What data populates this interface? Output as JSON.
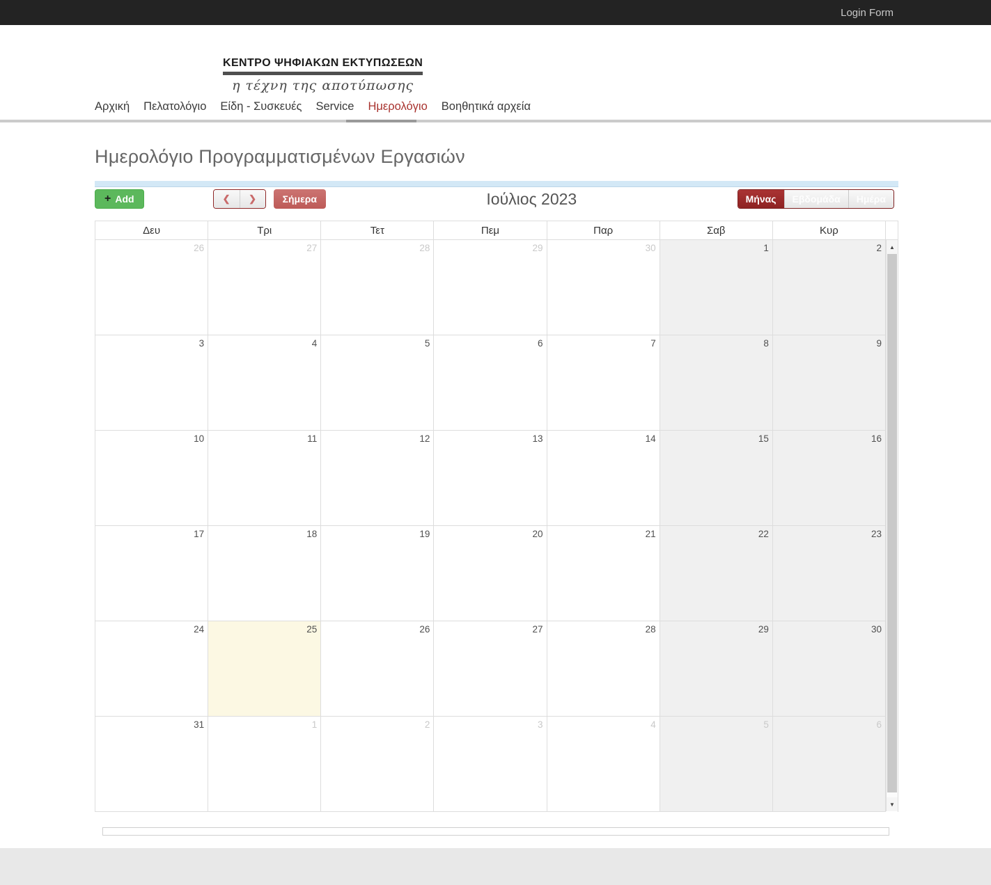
{
  "topbar": {
    "login_label": "Login Form"
  },
  "header": {
    "logo_title": "ΚΕΝΤΡΟ ΨΗΦΙΑΚΩΝ ΕΚΤΥΠΩΣΕΩΝ",
    "logo_tagline": "η τέχνη της αποτύπωσης",
    "nav": [
      {
        "label": "Αρχική",
        "active": false
      },
      {
        "label": "Πελατολόγιο",
        "active": false
      },
      {
        "label": "Είδη - Συσκευές",
        "active": false
      },
      {
        "label": "Service",
        "active": false
      },
      {
        "label": "Ημερολόγιο",
        "active": true
      },
      {
        "label": "Βοηθητικά αρχεία",
        "active": false
      }
    ]
  },
  "page": {
    "title": "Ημερολόγιο Προγραμματισμένων Εργασιών"
  },
  "calendar": {
    "toolbar": {
      "add_label": "Add",
      "today_label": "Σήμερα",
      "title": "Ιούλιος 2023",
      "views": [
        {
          "label": "Μήνας",
          "active": true
        },
        {
          "label": "Εβδομάδα",
          "active": false
        },
        {
          "label": "Ημέρα",
          "active": false
        }
      ]
    },
    "day_headers": [
      "Δευ",
      "Τρι",
      "Τετ",
      "Πεμ",
      "Παρ",
      "Σαβ",
      "Κυρ"
    ],
    "weeks": [
      [
        {
          "n": "26",
          "other": true
        },
        {
          "n": "27",
          "other": true
        },
        {
          "n": "28",
          "other": true
        },
        {
          "n": "29",
          "other": true
        },
        {
          "n": "30",
          "other": true
        },
        {
          "n": "1"
        },
        {
          "n": "2"
        }
      ],
      [
        {
          "n": "3"
        },
        {
          "n": "4"
        },
        {
          "n": "5"
        },
        {
          "n": "6"
        },
        {
          "n": "7"
        },
        {
          "n": "8"
        },
        {
          "n": "9"
        }
      ],
      [
        {
          "n": "10"
        },
        {
          "n": "11"
        },
        {
          "n": "12"
        },
        {
          "n": "13"
        },
        {
          "n": "14"
        },
        {
          "n": "15"
        },
        {
          "n": "16"
        }
      ],
      [
        {
          "n": "17"
        },
        {
          "n": "18"
        },
        {
          "n": "19"
        },
        {
          "n": "20"
        },
        {
          "n": "21"
        },
        {
          "n": "22"
        },
        {
          "n": "23"
        }
      ],
      [
        {
          "n": "24"
        },
        {
          "n": "25",
          "today": true
        },
        {
          "n": "26"
        },
        {
          "n": "27"
        },
        {
          "n": "28"
        },
        {
          "n": "29"
        },
        {
          "n": "30"
        }
      ],
      [
        {
          "n": "31"
        },
        {
          "n": "1",
          "other": true
        },
        {
          "n": "2",
          "other": true
        },
        {
          "n": "3",
          "other": true
        },
        {
          "n": "4",
          "other": true
        },
        {
          "n": "5",
          "other": true
        },
        {
          "n": "6",
          "other": true
        }
      ]
    ]
  },
  "icons": {
    "plus": "+",
    "chevron_left": "❮",
    "chevron_right": "❯",
    "scroll_up": "▲",
    "scroll_down": "▼"
  },
  "colors": {
    "topbar_bg": "#232323",
    "nav_active_red": "#a8322e",
    "accent_dark_red": "#9c2a2a",
    "add_button_green": "#5cb85c",
    "today_button_red": "#c4615f",
    "today_cell_bg": "#fcf8e3",
    "weekend_cell_bg": "#f0f0f0",
    "blue_strip": "#d3e8f6"
  }
}
